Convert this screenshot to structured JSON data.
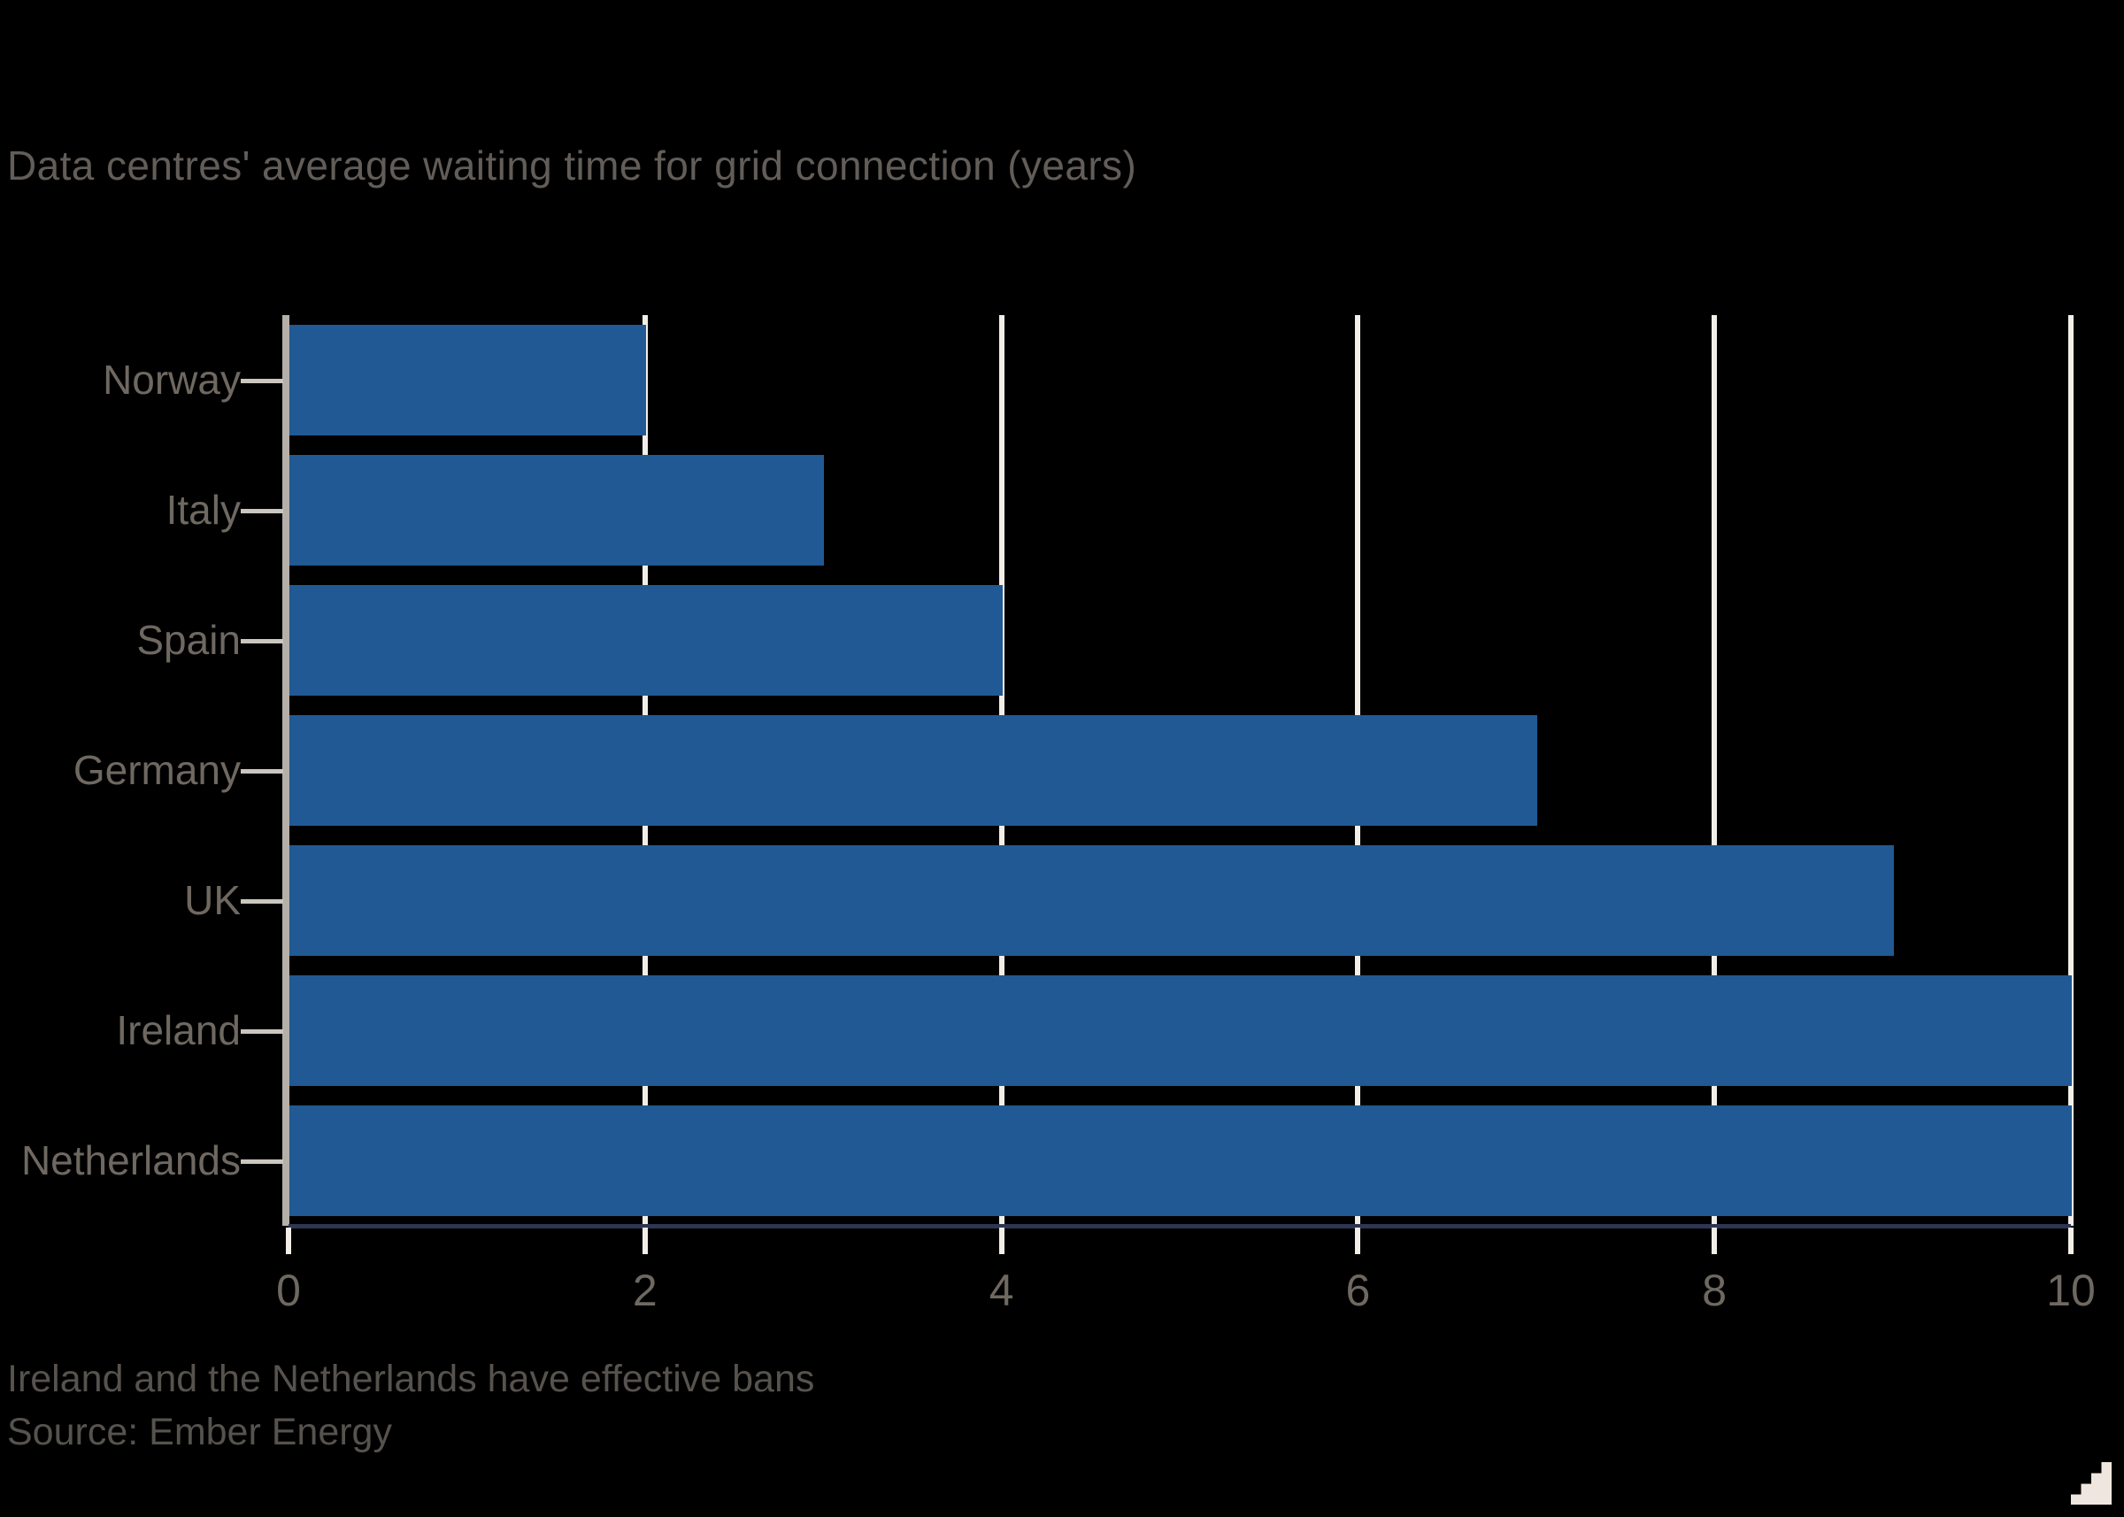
{
  "chart": {
    "title": "Data centres' average waiting time for grid connection (years)",
    "footnote": "Ireland and the Netherlands have effective bans",
    "source": "Source: Ember Energy"
  },
  "chart_data": {
    "type": "bar",
    "orientation": "horizontal",
    "title": "Data centres' average waiting time for grid connection (years)",
    "categories": [
      "Norway",
      "Italy",
      "Spain",
      "Germany",
      "UK",
      "Ireland",
      "Netherlands"
    ],
    "values": [
      2,
      3,
      4,
      7,
      9,
      10,
      10
    ],
    "xlabel": "",
    "ylabel": "",
    "xlim": [
      0,
      10
    ],
    "xticks": [
      0,
      2,
      4,
      6,
      8,
      10
    ],
    "grid": true,
    "legend": "none",
    "annotation": "Ireland and the Netherlands have effective bans"
  },
  "colors": {
    "background": "#000000",
    "bar": "#215994",
    "gridline": "#f3efe8",
    "axis_line": "#b4afa9",
    "baseline": "#2f3552",
    "title_text": "#625d58",
    "axis_text": "#6e6861",
    "footnote_text": "#56524d",
    "expand_icon": "#efe7df"
  },
  "icons": {
    "expand": "stair-step triangle, bottom right"
  }
}
